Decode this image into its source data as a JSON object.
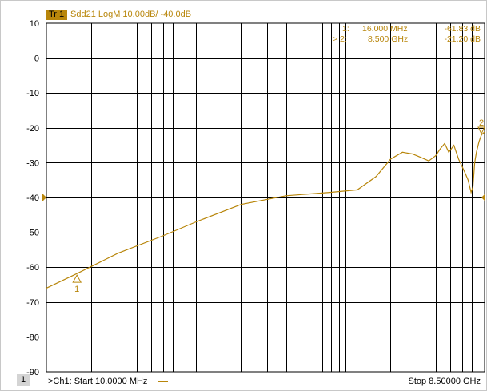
{
  "trace_badge": "Tr 1",
  "trace_title": "Sdd21 LogM 10.00dB/ -40.0dB",
  "markers": [
    {
      "id": "1:",
      "freq": "16.000  MHz",
      "value": "-61.83 dB"
    },
    {
      "id": "> 2:",
      "freq": "8.500  GHz",
      "value": "-21.20 dB"
    }
  ],
  "footer": {
    "channel": "1",
    "start": ">Ch1:  Start  10.0000 MHz",
    "stop": "Stop  8.50000 GHz"
  },
  "colors": {
    "trace": "#b8860b",
    "grid": "#000000",
    "axis_text": "#000000"
  },
  "chart_data": {
    "type": "line",
    "x_scale": "log",
    "xlim": [
      10000000,
      8500000000
    ],
    "x_unit": "Hz",
    "ylim": [
      -90,
      10
    ],
    "y_step": 10,
    "y_ticks": [
      "10",
      "0",
      "-10",
      "-20",
      "-30",
      "-40",
      "-50",
      "-60",
      "-70",
      "-80",
      "-90"
    ],
    "grid": true,
    "reference_level": -40,
    "series": [
      {
        "x": [
          10000000,
          16000000,
          30000000,
          60000000,
          100000000,
          200000000,
          400000000,
          800000000,
          1200000000,
          1600000000,
          2000000000,
          2400000000,
          2800000000,
          3200000000,
          3600000000,
          4000000000,
          4300000000,
          4600000000,
          4900000000,
          5300000000,
          5700000000,
          6000000000,
          6300000000,
          6600000000,
          6900000000,
          7100000000,
          7300000000,
          7500000000,
          7800000000,
          8100000000,
          8500000000
        ],
        "y": [
          -66,
          -61.83,
          -56,
          -51,
          -47,
          -42,
          -39.5,
          -38.5,
          -37.8,
          -34,
          -29,
          -27,
          -27.5,
          -28.5,
          -29.5,
          -28,
          -26,
          -24.5,
          -27,
          -25,
          -29,
          -31,
          -33,
          -35,
          -38.5,
          -37,
          -30,
          -27,
          -24,
          -22,
          -21.2
        ]
      }
    ],
    "marker_points": [
      {
        "label": "1",
        "x": 16000000,
        "y": -61.83
      },
      {
        "label": "2",
        "x": 8500000000,
        "y": -21.2
      }
    ]
  }
}
